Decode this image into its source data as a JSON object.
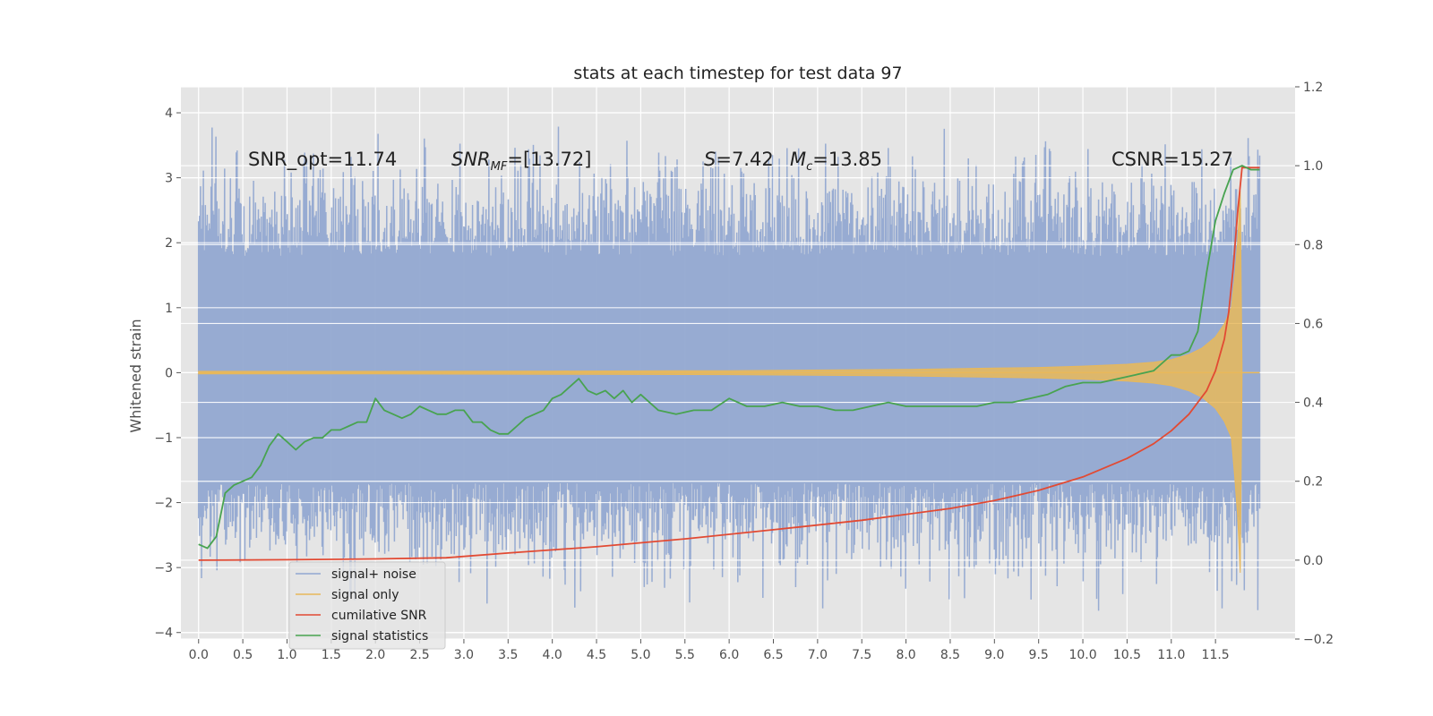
{
  "chart_data": {
    "type": "line",
    "title": "stats at each timestep for test data 97",
    "xlabel": "",
    "ylabel": "Whitened strain",
    "ylabel_right": "",
    "xlim": [
      -0.2,
      12.4
    ],
    "ylim": [
      -4.1,
      4.4
    ],
    "ylim_right": [
      -0.2,
      1.2
    ],
    "x_ticks": [
      "0.0",
      "0.5",
      "1.0",
      "1.5",
      "2.0",
      "2.5",
      "3.0",
      "3.5",
      "4.0",
      "4.5",
      "5.0",
      "5.5",
      "6.0",
      "6.5",
      "7.0",
      "7.5",
      "8.0",
      "8.5",
      "9.0",
      "9.5",
      "10.0",
      "10.5",
      "11.0",
      "11.5"
    ],
    "y_ticks": [
      "4",
      "3",
      "2",
      "1",
      "0",
      "−1",
      "−2",
      "−3",
      "−4"
    ],
    "y_ticks_right": [
      "1.2",
      "1.0",
      "0.8",
      "0.6",
      "0.4",
      "0.2",
      "0.0",
      "−0.2"
    ],
    "grid": true,
    "legend_position": "lower-left",
    "annotations": {
      "snr_opt": "SNR_opt=11.74",
      "snr_mf_main": "SNR",
      "snr_mf_sub": "MF",
      "snr_mf_value": "=[13.72]",
      "s_var": "S",
      "s_value": "=7.42",
      "mc_var": "M",
      "mc_sub": "c",
      "mc_value": "=13.85",
      "csnr": "CSNR=15.27"
    },
    "series": [
      {
        "name": "signal+ noise",
        "color": "#92a8d1",
        "axis": "left",
        "x_range": [
          0.0,
          12.0
        ],
        "band_upper": 2.4,
        "band_lower": -2.3
      },
      {
        "name": "signal only",
        "color": "#e8b85a",
        "axis": "left",
        "x": [
          0,
          2,
          4,
          6,
          8,
          9,
          9.5,
          10,
          10.5,
          10.8,
          11,
          11.2,
          11.35,
          11.5,
          11.6,
          11.68,
          11.72,
          11.75,
          11.78,
          11.8
        ],
        "amplitude": [
          0.02,
          0.02,
          0.025,
          0.03,
          0.05,
          0.07,
          0.08,
          0.1,
          0.13,
          0.16,
          0.2,
          0.28,
          0.38,
          0.55,
          0.75,
          1.0,
          1.5,
          2.0,
          2.8,
          0.0
        ]
      },
      {
        "name": "cumilative SNR",
        "color": "#e24a33",
        "axis": "right",
        "x": [
          0,
          1,
          2,
          2.8,
          3.5,
          4.5,
          5.5,
          6.5,
          7.5,
          8.5,
          9.0,
          9.5,
          10.0,
          10.5,
          10.8,
          11.0,
          11.2,
          11.4,
          11.5,
          11.6,
          11.65,
          11.7,
          11.75,
          11.8,
          12.0
        ],
        "values": [
          0.0,
          0.001,
          0.003,
          0.006,
          0.018,
          0.034,
          0.054,
          0.077,
          0.101,
          0.131,
          0.151,
          0.177,
          0.211,
          0.258,
          0.295,
          0.328,
          0.37,
          0.43,
          0.48,
          0.56,
          0.63,
          0.74,
          0.88,
          0.995,
          0.995
        ]
      },
      {
        "name": "signal statistics",
        "color": "#48a350",
        "axis": "right",
        "x": [
          0,
          0.1,
          0.2,
          0.3,
          0.4,
          0.5,
          0.6,
          0.7,
          0.8,
          0.9,
          1.0,
          1.1,
          1.2,
          1.3,
          1.4,
          1.5,
          1.6,
          1.7,
          1.8,
          1.9,
          2.0,
          2.1,
          2.2,
          2.3,
          2.4,
          2.5,
          2.6,
          2.7,
          2.8,
          2.9,
          3.0,
          3.1,
          3.2,
          3.3,
          3.4,
          3.5,
          3.6,
          3.7,
          3.8,
          3.9,
          4.0,
          4.1,
          4.2,
          4.3,
          4.4,
          4.5,
          4.6,
          4.7,
          4.8,
          4.9,
          5.0,
          5.2,
          5.4,
          5.6,
          5.8,
          6.0,
          6.2,
          6.4,
          6.6,
          6.8,
          7.0,
          7.2,
          7.4,
          7.6,
          7.8,
          8.0,
          8.2,
          8.4,
          8.6,
          8.8,
          9.0,
          9.2,
          9.4,
          9.6,
          9.8,
          10.0,
          10.2,
          10.4,
          10.6,
          10.8,
          10.9,
          11.0,
          11.1,
          11.2,
          11.3,
          11.4,
          11.5,
          11.6,
          11.7,
          11.8,
          11.9,
          12.0
        ],
        "values": [
          0.04,
          0.03,
          0.06,
          0.17,
          0.19,
          0.2,
          0.21,
          0.24,
          0.29,
          0.32,
          0.3,
          0.28,
          0.3,
          0.31,
          0.31,
          0.33,
          0.33,
          0.34,
          0.35,
          0.35,
          0.41,
          0.38,
          0.37,
          0.36,
          0.37,
          0.39,
          0.38,
          0.37,
          0.37,
          0.38,
          0.38,
          0.35,
          0.35,
          0.33,
          0.32,
          0.32,
          0.34,
          0.36,
          0.37,
          0.38,
          0.41,
          0.42,
          0.44,
          0.46,
          0.43,
          0.42,
          0.43,
          0.41,
          0.43,
          0.4,
          0.42,
          0.38,
          0.37,
          0.38,
          0.38,
          0.41,
          0.39,
          0.39,
          0.4,
          0.39,
          0.39,
          0.38,
          0.38,
          0.39,
          0.4,
          0.39,
          0.39,
          0.39,
          0.39,
          0.39,
          0.4,
          0.4,
          0.41,
          0.42,
          0.44,
          0.45,
          0.45,
          0.46,
          0.47,
          0.48,
          0.5,
          0.52,
          0.52,
          0.53,
          0.58,
          0.73,
          0.86,
          0.93,
          0.99,
          1.0,
          0.99,
          0.99
        ]
      }
    ]
  }
}
